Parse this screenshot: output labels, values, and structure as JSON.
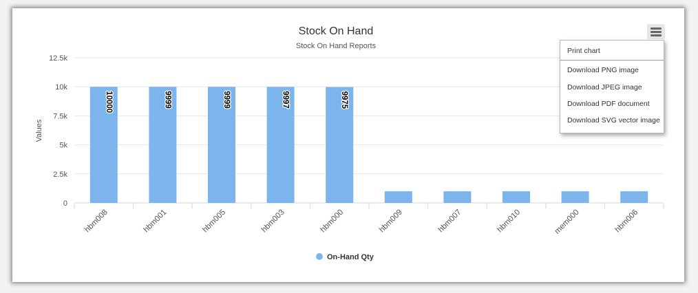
{
  "menu": {
    "items": [
      "Print chart",
      "Download PNG image",
      "Download JPEG image",
      "Download PDF document",
      "Download SVG vector image"
    ]
  },
  "chart_data": {
    "type": "bar",
    "title": "Stock On Hand",
    "subtitle": "Stock On Hand Reports",
    "ylabel": "Values",
    "xlabel": "",
    "ylim": [
      0,
      12500
    ],
    "yticks": [
      0,
      2500,
      5000,
      7500,
      10000,
      12500
    ],
    "ytick_labels": [
      "0",
      "2.5k",
      "5k",
      "7.5k",
      "10k",
      "12.5k"
    ],
    "categories": [
      "hbm008",
      "hbm001",
      "hbm005",
      "hbm003",
      "hbm000",
      "hbm009",
      "hbm007",
      "hbm010",
      "mem000",
      "hbm006"
    ],
    "series": [
      {
        "name": "On-Hand Qty",
        "color": "#7cb5ec",
        "values": [
          10000,
          9999,
          9999,
          9997,
          9975,
          1000,
          1000,
          1000,
          1000,
          1000
        ],
        "data_labels": [
          "10000",
          "9999",
          "9999",
          "9997",
          "9975",
          null,
          null,
          null,
          null,
          null
        ]
      }
    ],
    "grid": true,
    "legend": "bottom-center"
  }
}
